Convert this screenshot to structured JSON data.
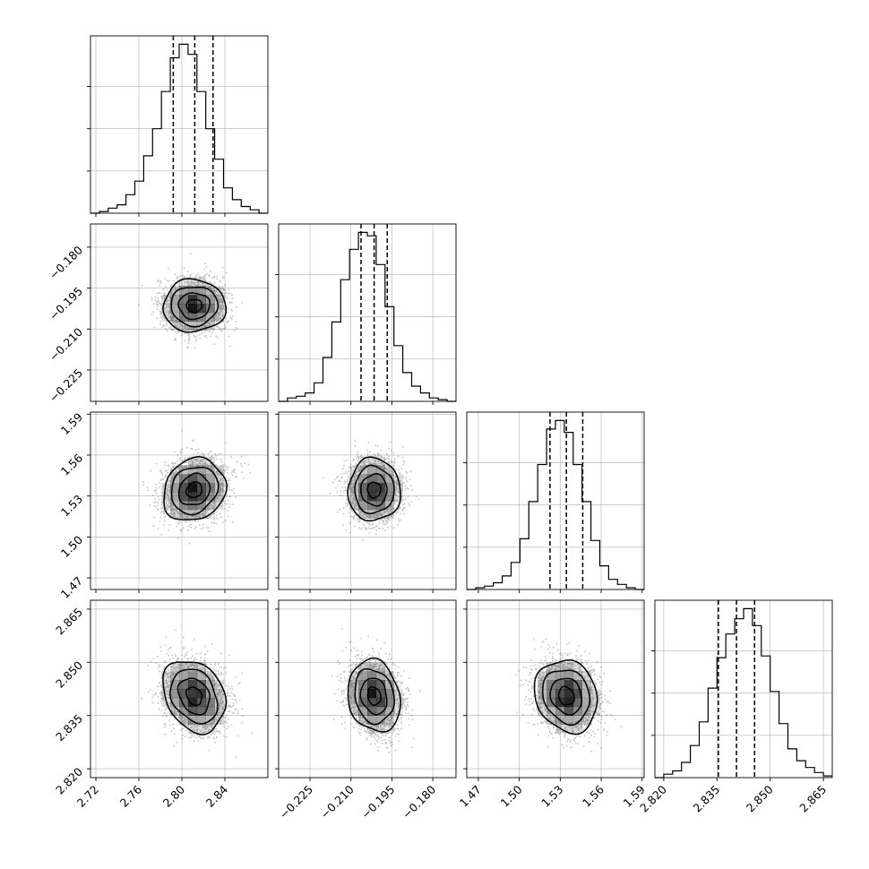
{
  "chart_data": {
    "type": "corner",
    "grid": true,
    "parameters": [
      {
        "index": 0,
        "range": [
          2.715,
          2.88
        ],
        "ticks": [
          2.72,
          2.76,
          2.8,
          2.84
        ],
        "tick_labels": [
          "2.72",
          "2.76",
          "2.80",
          "2.84"
        ],
        "quantiles": [
          2.792,
          2.812,
          2.829
        ],
        "mean": 2.8115,
        "sigma": 0.0145,
        "histogram": {
          "counts": [
            0,
            1,
            3,
            5,
            11,
            19,
            34,
            50,
            72,
            92,
            100,
            94,
            72,
            50,
            32,
            15,
            8,
            4,
            2,
            0
          ],
          "peak": 100
        }
      },
      {
        "index": 1,
        "range": [
          -0.2365,
          -0.1715
        ],
        "ticks": [
          -0.225,
          -0.21,
          -0.195,
          -0.18
        ],
        "tick_labels": [
          "−0.225",
          "−0.210",
          "−0.195",
          "−0.180"
        ],
        "quantiles": [
          -0.2063,
          -0.2015,
          -0.1967
        ],
        "mean": -0.2015,
        "sigma": 0.0048,
        "histogram": {
          "counts": [
            0,
            2,
            3,
            5,
            11,
            26,
            47,
            72,
            90,
            100,
            98,
            81,
            56,
            33,
            17,
            9,
            5,
            2,
            1,
            0
          ],
          "peak": 100
        }
      },
      {
        "index": 2,
        "range": [
          1.4615,
          1.5915
        ],
        "ticks": [
          1.47,
          1.5,
          1.53,
          1.56,
          1.59
        ],
        "tick_labels": [
          "1.47",
          "1.50",
          "1.53",
          "1.56",
          "1.59"
        ],
        "quantiles": [
          1.5225,
          1.5345,
          1.5465
        ],
        "mean": 1.5345,
        "sigma": 0.0115,
        "histogram": {
          "counts": [
            0,
            1,
            2,
            4,
            8,
            16,
            30,
            52,
            74,
            95,
            100,
            93,
            74,
            52,
            29,
            14,
            6,
            3,
            1,
            0
          ],
          "peak": 100
        }
      },
      {
        "index": 3,
        "range": [
          2.8175,
          2.8675
        ],
        "ticks": [
          2.82,
          2.835,
          2.85,
          2.865
        ],
        "tick_labels": [
          "2.820",
          "2.835",
          "2.850",
          "2.865"
        ],
        "quantiles": [
          2.8354,
          2.8405,
          2.8456
        ],
        "mean": 2.8405,
        "sigma": 0.0051,
        "histogram": {
          "counts": [
            0,
            2,
            4,
            9,
            19,
            33,
            53,
            71,
            85,
            94,
            100,
            90,
            72,
            51,
            32,
            17,
            10,
            6,
            3,
            1
          ],
          "peak": 100
        }
      }
    ],
    "correlations": [
      {
        "pair": [
          1,
          0
        ],
        "rho": 0.0
      },
      {
        "pair": [
          2,
          0
        ],
        "rho": 0.15
      },
      {
        "pair": [
          2,
          1
        ],
        "rho": 0.0
      },
      {
        "pair": [
          3,
          0
        ],
        "rho": -0.25
      },
      {
        "pair": [
          3,
          1
        ],
        "rho": -0.15
      },
      {
        "pair": [
          3,
          2
        ],
        "rho": -0.15
      }
    ],
    "contour_levels_sigma": [
      0.5,
      1.0,
      1.5,
      2.0
    ]
  }
}
